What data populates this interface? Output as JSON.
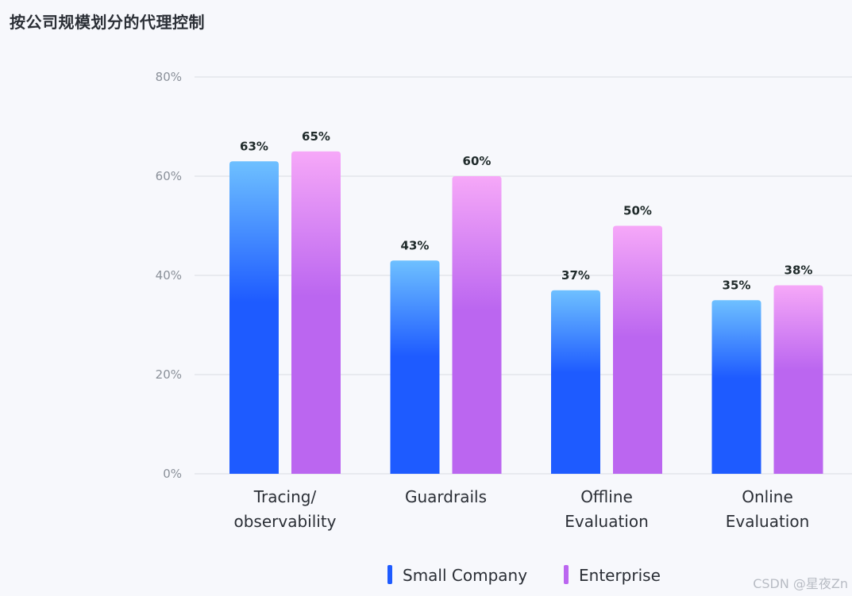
{
  "title": "按公司规模划分的代理控制",
  "watermark": "CSDN @星夜Zn",
  "chart_data": {
    "type": "bar",
    "title": "按公司规模划分的代理控制",
    "xlabel": "",
    "ylabel": "",
    "categories": [
      [
        "Tracing/",
        "observability"
      ],
      [
        "Guardrails"
      ],
      [
        "Offline",
        "Evaluation"
      ],
      [
        "Online",
        "Evaluation"
      ]
    ],
    "series": [
      {
        "name": "Small Company",
        "values": [
          63,
          43,
          37,
          35
        ],
        "labels": [
          "63%",
          "43%",
          "37%",
          "35%"
        ],
        "color_top": "#6ec0ff",
        "color_bottom": "#1e5bff"
      },
      {
        "name": "Enterprise",
        "values": [
          65,
          60,
          50,
          38
        ],
        "labels": [
          "65%",
          "60%",
          "50%",
          "38%"
        ],
        "color_top": "#f6a8f8",
        "color_bottom": "#bb66f0"
      }
    ],
    "ylim": [
      0,
      80
    ],
    "yticks": [
      0,
      20,
      40,
      60,
      80
    ],
    "ytick_labels": [
      "0%",
      "20%",
      "40%",
      "60%",
      "80%"
    ],
    "grid": true,
    "legend_position": "bottom"
  }
}
